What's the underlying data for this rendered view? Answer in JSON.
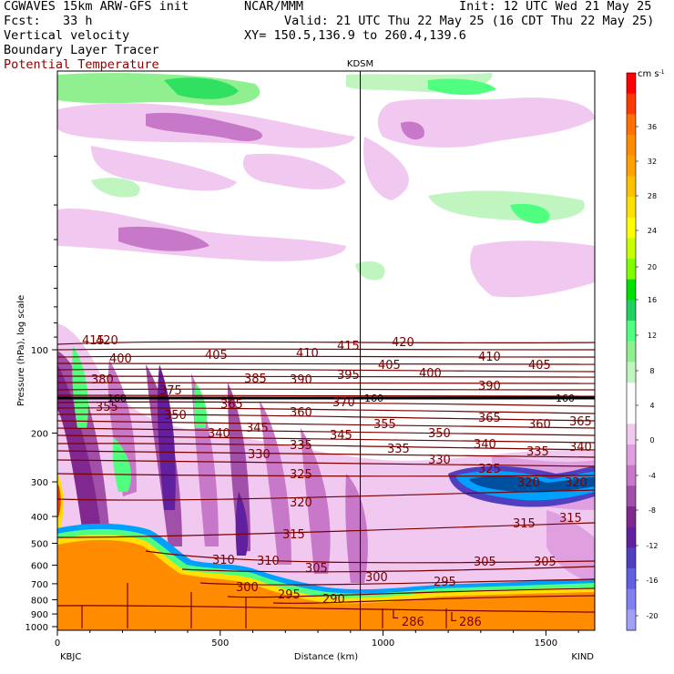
{
  "header": {
    "model": "CGWAVES 15km ARW-GFS init",
    "org": "NCAR/MMM",
    "init": "Init: 12 UTC Wed 21 May 25",
    "fcst": "Fcst:   33 h",
    "valid": "Valid: 21 UTC Thu 22 May 25 (16 CDT Thu 22 May 25)",
    "field1": "Vertical velocity",
    "field2": "Boundary Layer Tracer",
    "field3": "Potential Temperature",
    "xy": "XY= 150.5,136.9 to 260.4,139.6",
    "field3_color": "#8b0000"
  },
  "chart_data": {
    "type": "cross-section",
    "title": "",
    "xlabel": "Distance (km)",
    "ylabel": "Pressure (hPa), log scale",
    "x_ticks": [
      "0",
      "500",
      "1000",
      "1500"
    ],
    "xlim": [
      0,
      1650
    ],
    "y_ticks": [
      "100",
      "200",
      "300",
      "400",
      "500",
      "600",
      "700",
      "800",
      "900",
      "1000"
    ],
    "y_tick_values": [
      100,
      200,
      300,
      400,
      500,
      600,
      700,
      800,
      900,
      1000
    ],
    "y_scale": "log",
    "station_left": "KBJC",
    "station_right": "KIND",
    "station_mid": "KDSM",
    "station_mid_km": 930,
    "colorbar": {
      "unit": "cm s",
      "unit_exp": "-1",
      "labels": [
        "36",
        "32",
        "28",
        "24",
        "20",
        "16",
        "12",
        "8",
        "4",
        "0",
        "-4",
        "-8",
        "-12",
        "-16",
        "-20"
      ],
      "colors": [
        "#ff0000",
        "#ff3a00",
        "#ff7000",
        "#ff8c00",
        "#ffa000",
        "#ffc000",
        "#ffe000",
        "#ffff00",
        "#c8ff00",
        "#80ff00",
        "#00e000",
        "#20d060",
        "#50ff80",
        "#90f090",
        "#c0f5c0",
        "#ffffff",
        "#ffffff",
        "#f0c8f0",
        "#e0a0e0",
        "#c878c8",
        "#a050a8",
        "#802890",
        "#6020a0",
        "#5040c0",
        "#6060e0",
        "#8080f0",
        "#a0a0f8"
      ],
      "positive_levels": 9,
      "negative_levels": 5
    },
    "theta_contours": [
      {
        "label": "420",
        "pos": [
          [
            105,
            378
          ],
          [
            430,
            380
          ]
        ]
      },
      {
        "label": "415",
        "pos": [
          [
            90,
            378
          ],
          [
            370,
            384
          ]
        ]
      },
      {
        "label": "410",
        "pos": [
          [
            325,
            392
          ],
          [
            525,
            396
          ]
        ]
      },
      {
        "label": "405",
        "pos": [
          [
            225,
            394
          ],
          [
            415,
            405
          ],
          [
            580,
            405
          ]
        ]
      },
      {
        "label": "400",
        "pos": [
          [
            120,
            398
          ],
          [
            460,
            414
          ]
        ]
      },
      {
        "label": "395",
        "pos": [
          [
            370,
            416
          ]
        ]
      },
      {
        "label": "390",
        "pos": [
          [
            318,
            421
          ],
          [
            525,
            428
          ]
        ]
      },
      {
        "label": "385",
        "pos": [
          [
            268,
            420
          ]
        ]
      },
      {
        "label": "380",
        "pos": [
          [
            100,
            421
          ]
        ]
      },
      {
        "label": "375",
        "pos": [
          [
            175,
            433
          ]
        ]
      },
      {
        "label": "370",
        "pos": [
          [
            365,
            446
          ]
        ]
      },
      {
        "label": "365",
        "pos": [
          [
            242,
            448
          ],
          [
            525,
            463
          ],
          [
            625,
            467
          ]
        ]
      },
      {
        "label": "360",
        "pos": [
          [
            318,
            457
          ],
          [
            580,
            470
          ]
        ]
      },
      {
        "label": "355",
        "pos": [
          [
            105,
            451
          ],
          [
            410,
            470
          ]
        ]
      },
      {
        "label": "350",
        "pos": [
          [
            180,
            460
          ],
          [
            470,
            480
          ]
        ]
      },
      {
        "label": "345",
        "pos": [
          [
            270,
            474
          ],
          [
            362,
            482
          ]
        ]
      },
      {
        "label": "340",
        "pos": [
          [
            228,
            480
          ],
          [
            520,
            492
          ],
          [
            625,
            495
          ]
        ]
      },
      {
        "label": "335",
        "pos": [
          [
            318,
            493
          ],
          [
            425,
            497
          ],
          [
            578,
            500
          ]
        ]
      },
      {
        "label": "330",
        "pos": [
          [
            272,
            503
          ],
          [
            470,
            509
          ]
        ]
      },
      {
        "label": "325",
        "pos": [
          [
            318,
            525
          ],
          [
            525,
            519
          ]
        ]
      },
      {
        "label": "320",
        "pos": [
          [
            318,
            556
          ],
          [
            568,
            534
          ],
          [
            620,
            534
          ]
        ]
      },
      {
        "label": "315",
        "pos": [
          [
            310,
            591
          ],
          [
            563,
            579
          ],
          [
            614,
            573
          ]
        ]
      },
      {
        "label": "310",
        "pos": [
          [
            233,
            619
          ],
          [
            282,
            620
          ]
        ]
      },
      {
        "label": "305",
        "pos": [
          [
            335,
            628
          ],
          [
            520,
            621
          ],
          [
            586,
            621
          ]
        ]
      },
      {
        "label": "300",
        "pos": [
          [
            259,
            649
          ],
          [
            401,
            638
          ]
        ]
      },
      {
        "label": "295",
        "pos": [
          [
            305,
            657
          ],
          [
            476,
            643
          ]
        ]
      },
      {
        "label": "290",
        "pos": [
          [
            354,
            662
          ]
        ]
      },
      {
        "label": "286",
        "pos": [
          [
            441,
            687
          ],
          [
            504,
            687
          ]
        ]
      }
    ],
    "tropopause_labels": [
      "160",
      "160",
      "160"
    ],
    "low_markers": [
      "L",
      "L"
    ]
  }
}
